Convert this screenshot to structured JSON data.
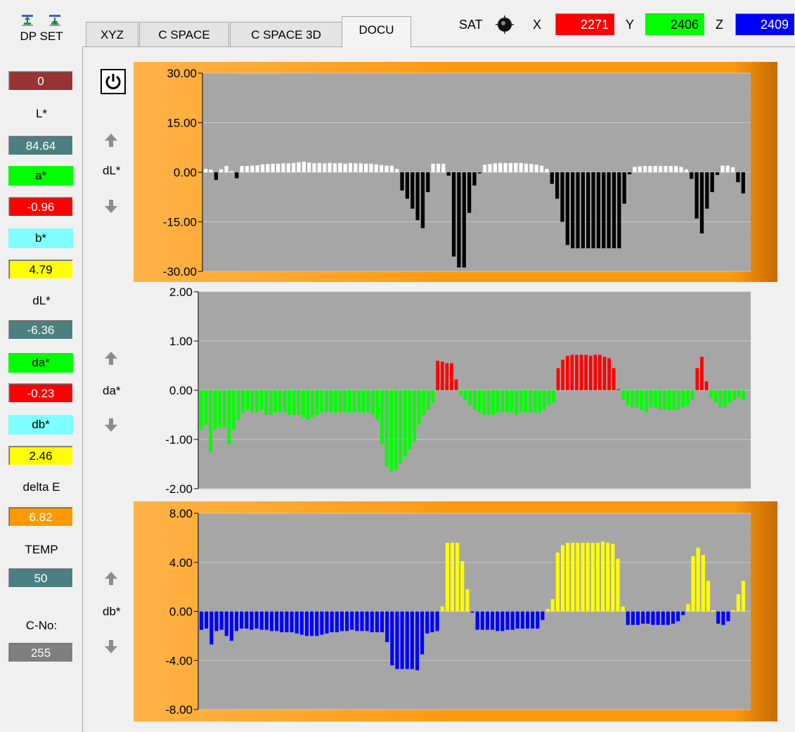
{
  "sidebar": {
    "dp_set_label": "DP SET",
    "dp_set_value": "0",
    "l_label": "L*",
    "l_value": "84.64",
    "a_label": "a*",
    "a_value": "-0.96",
    "b_label": "b*",
    "b_value": "4.79",
    "dl_label": "dL*",
    "dl_value": "-6.36",
    "da_label": "da*",
    "da_value": "-0.23",
    "db_label": "db*",
    "db_value": "2.46",
    "de_label": "delta E",
    "de_value": "6.82",
    "temp_label": "TEMP",
    "temp_value": "50",
    "cno_label": "C-No:",
    "cno_value": "255"
  },
  "tabs": [
    "XYZ",
    "C SPACE",
    "C SPACE 3D",
    "DOCU"
  ],
  "active_tab": "DOCU",
  "header": {
    "sat_label": "SAT",
    "x_label": "X",
    "x_value": "2271",
    "y_label": "Y",
    "y_value": "2406",
    "z_label": "Z",
    "z_value": "2409"
  },
  "channels": {
    "dl_label": "dL*",
    "da_label": "da*",
    "db_label": "db*"
  },
  "colors": {
    "red": "#ff0000",
    "green": "#00ff00",
    "blue": "#0000ff",
    "yellow": "#ffff00",
    "cyan": "#7fffff",
    "teal": "#4c7f7f",
    "maroon": "#993333",
    "orange": "#ff9900",
    "gray_value": "#7f7f7f",
    "plot_bg": "#a6a6a6",
    "frame_orange": "#ff9a10"
  },
  "icons": [
    "import-icon",
    "export-icon",
    "power-icon",
    "sat-knob-icon",
    "arrow-up-icon",
    "arrow-down-icon"
  ],
  "chart_data": [
    {
      "type": "bar",
      "ylabel": "dL*",
      "ylim": [
        -30,
        30
      ],
      "y_ticks": [
        "30.00",
        "15.00",
        "0.00",
        "-15.00",
        "-30.00"
      ],
      "grid": true,
      "frame": "orange",
      "positive_color": "#ffffff",
      "negative_color": "#000000",
      "values": [
        1,
        0.8,
        -2.3,
        0.9,
        1.9,
        0.2,
        -1.8,
        1.9,
        1.9,
        2.0,
        2.1,
        2.4,
        2.5,
        2.6,
        2.6,
        2.7,
        2.7,
        2.8,
        3.0,
        3.2,
        2.9,
        2.7,
        2.8,
        2.7,
        2.8,
        2.7,
        2.8,
        2.6,
        2.8,
        2.7,
        2.7,
        2.6,
        2.6,
        2.4,
        2.2,
        2.0,
        2.0,
        1.0,
        -5.5,
        -8.0,
        -11.0,
        -14.5,
        -16.9,
        -6.0,
        2.6,
        2.6,
        2.6,
        -1.0,
        -25.5,
        -28.8,
        -28.8,
        -12.3,
        -4.0,
        -0.1,
        2.3,
        2.5,
        2.7,
        2.8,
        2.8,
        2.8,
        2.8,
        2.8,
        2.6,
        2.5,
        2.3,
        2.0,
        1.0,
        -3.5,
        -8.0,
        -15.0,
        -22.0,
        -23.0,
        -23.0,
        -23.0,
        -23.0,
        -23.0,
        -23.0,
        -23.0,
        -23.0,
        -23.0,
        -23.0,
        -9.5,
        -0.6,
        1.6,
        1.8,
        1.9,
        1.9,
        1.9,
        1.9,
        1.9,
        1.9,
        1.9,
        1.6,
        0.9,
        -2.0,
        -14.0,
        -18.5,
        -11.0,
        -6.0,
        -0.8,
        2.0,
        2.0,
        1.5,
        -3.0,
        -6.4
      ]
    },
    {
      "type": "bar",
      "ylabel": "da*",
      "ylim": [
        -2,
        2
      ],
      "y_ticks": [
        "2.00",
        "1.00",
        "0.00",
        "-1.00",
        "-2.00"
      ],
      "grid": true,
      "frame": "none",
      "positive_color": "#ff0000",
      "negative_color": "#00ff00",
      "values": [
        -0.8,
        -0.7,
        -1.25,
        -0.8,
        -0.75,
        -0.75,
        -1.1,
        -0.8,
        -0.6,
        -0.45,
        -0.4,
        -0.45,
        -0.45,
        -0.4,
        -0.5,
        -0.5,
        -0.45,
        -0.45,
        -0.45,
        -0.5,
        -0.5,
        -0.5,
        -0.55,
        -0.6,
        -0.55,
        -0.5,
        -0.45,
        -0.45,
        -0.45,
        -0.45,
        -0.45,
        -0.45,
        -0.45,
        -0.45,
        -0.45,
        -0.45,
        -0.45,
        -0.5,
        -0.6,
        -1.1,
        -1.55,
        -1.65,
        -1.6,
        -1.5,
        -1.35,
        -1.2,
        -1.05,
        -0.7,
        -0.5,
        -0.4,
        -0.25,
        0.6,
        0.58,
        0.55,
        0.55,
        0.22,
        -0.1,
        -0.2,
        -0.3,
        -0.4,
        -0.45,
        -0.5,
        -0.5,
        -0.5,
        -0.45,
        -0.45,
        -0.45,
        -0.45,
        -0.5,
        -0.45,
        -0.45,
        -0.45,
        -0.45,
        -0.45,
        -0.4,
        -0.3,
        -0.25,
        0.45,
        0.62,
        0.7,
        0.72,
        0.72,
        0.72,
        0.72,
        0.7,
        0.72,
        0.72,
        0.68,
        0.65,
        0.45,
        0.02,
        -0.2,
        -0.3,
        -0.35,
        -0.35,
        -0.4,
        -0.45,
        -0.35,
        -0.35,
        -0.4,
        -0.4,
        -0.4,
        -0.4,
        -0.4,
        -0.35,
        -0.3,
        -0.2,
        0.45,
        0.68,
        0.18,
        -0.15,
        -0.25,
        -0.35,
        -0.35,
        -0.25,
        -0.2,
        -0.15,
        -0.2
      ]
    },
    {
      "type": "bar",
      "ylabel": "db*",
      "ylim": [
        -8,
        8
      ],
      "y_ticks": [
        "8.00",
        "4.00",
        "0.00",
        "-4.00",
        "-8.00"
      ],
      "grid": true,
      "frame": "orange",
      "positive_color": "#ffff00",
      "negative_color": "#0000ff",
      "values": [
        -1.5,
        -1.4,
        -2.7,
        -1.6,
        -1.5,
        -2.0,
        -2.4,
        -1.6,
        -1.4,
        -1.4,
        -1.5,
        -1.4,
        -1.5,
        -1.5,
        -1.6,
        -1.6,
        -1.7,
        -1.7,
        -1.7,
        -1.8,
        -1.9,
        -2.0,
        -2.0,
        -2.0,
        -1.9,
        -1.8,
        -1.7,
        -1.7,
        -1.6,
        -1.6,
        -1.5,
        -1.6,
        -1.6,
        -1.6,
        -1.7,
        -1.7,
        -1.7,
        -2.5,
        -4.4,
        -4.7,
        -4.7,
        -4.7,
        -4.7,
        -4.8,
        -3.5,
        -1.8,
        -1.7,
        -1.6,
        0.4,
        5.6,
        5.6,
        5.6,
        4.1,
        1.8,
        -0.1,
        -1.5,
        -1.5,
        -1.5,
        -1.5,
        -1.6,
        -1.6,
        -1.5,
        -1.5,
        -1.4,
        -1.4,
        -1.4,
        -1.4,
        -1.4,
        -0.7,
        0.2,
        1.0,
        4.8,
        5.4,
        5.6,
        5.6,
        5.6,
        5.6,
        5.6,
        5.6,
        5.6,
        5.7,
        5.6,
        5.5,
        4.3,
        0.4,
        -1.1,
        -1.1,
        -1.1,
        -1.0,
        -1.0,
        -1.1,
        -1.1,
        -1.1,
        -1.1,
        -1.0,
        -0.8,
        -0.3,
        0.6,
        4.5,
        5.2,
        4.6,
        2.5,
        0.1,
        -1.0,
        -1.1,
        -0.8,
        0.1,
        1.4,
        2.5
      ]
    }
  ]
}
